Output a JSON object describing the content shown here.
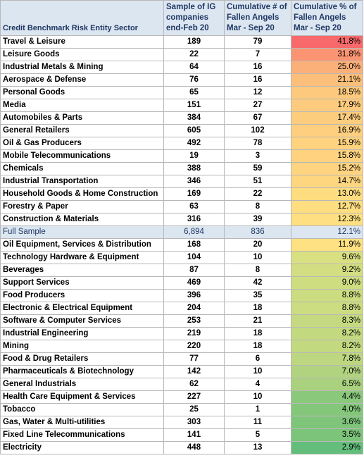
{
  "headers": {
    "sector": "Credit Benchmark Risk Entity Sector",
    "sample_line1": "Sample of IG",
    "sample_line2": "companies",
    "sample_line3": "end-Feb 20",
    "cum_line1": "Cumulative # of",
    "cum_line2": "Fallen Angels",
    "cum_line3": "Mar - Sep 20",
    "pct_line1": "Cumulative % of",
    "pct_line2": "Fallen Angels",
    "pct_line3": "Mar - Sep 20"
  },
  "rows": [
    {
      "sector": "Travel & Leisure",
      "sample": "189",
      "fallen": "79",
      "pct": "41.8%",
      "color": "#f8696b"
    },
    {
      "sector": "Leisure Goods",
      "sample": "22",
      "fallen": "7",
      "pct": "31.8%",
      "color": "#fa9473"
    },
    {
      "sector": "Industrial Metals & Mining",
      "sample": "64",
      "fallen": "16",
      "pct": "25.0%",
      "color": "#fbb079"
    },
    {
      "sector": "Aerospace & Defense",
      "sample": "76",
      "fallen": "16",
      "pct": "21.1%",
      "color": "#fcbf7b"
    },
    {
      "sector": "Personal Goods",
      "sample": "65",
      "fallen": "12",
      "pct": "18.5%",
      "color": "#fdc97d"
    },
    {
      "sector": "Media",
      "sample": "151",
      "fallen": "27",
      "pct": "17.9%",
      "color": "#fdcb7d"
    },
    {
      "sector": "Automobiles & Parts",
      "sample": "384",
      "fallen": "67",
      "pct": "17.4%",
      "color": "#fdcd7e"
    },
    {
      "sector": "General Retailers",
      "sample": "605",
      "fallen": "102",
      "pct": "16.9%",
      "color": "#fdcf7e"
    },
    {
      "sector": "Oil & Gas Producers",
      "sample": "492",
      "fallen": "78",
      "pct": "15.9%",
      "color": "#fed27f"
    },
    {
      "sector": "Mobile Telecommunications",
      "sample": "19",
      "fallen": "3",
      "pct": "15.8%",
      "color": "#fed27f"
    },
    {
      "sector": "Chemicals",
      "sample": "388",
      "fallen": "59",
      "pct": "15.2%",
      "color": "#fed480"
    },
    {
      "sector": "Industrial Transportation",
      "sample": "346",
      "fallen": "51",
      "pct": "14.7%",
      "color": "#fed680"
    },
    {
      "sector": "Household Goods & Home Construction",
      "sample": "169",
      "fallen": "22",
      "pct": "13.0%",
      "color": "#fedd81"
    },
    {
      "sector": "Forestry & Paper",
      "sample": "63",
      "fallen": "8",
      "pct": "12.7%",
      "color": "#fede81"
    },
    {
      "sector": "Construction & Materials",
      "sample": "316",
      "fallen": "39",
      "pct": "12.3%",
      "color": "#fee082"
    },
    {
      "sector": "Full Sample",
      "sample": "6,894",
      "fallen": "836",
      "pct": "12.1%",
      "full": true
    },
    {
      "sector": "Oil Equipment, Services & Distribution",
      "sample": "168",
      "fallen": "20",
      "pct": "11.9%",
      "color": "#fee182"
    },
    {
      "sector": "Technology Hardware & Equipment",
      "sample": "104",
      "fallen": "10",
      "pct": "9.6%",
      "color": "#d8e082"
    },
    {
      "sector": "Beverages",
      "sample": "87",
      "fallen": "8",
      "pct": "9.2%",
      "color": "#d2de81"
    },
    {
      "sector": "Support Services",
      "sample": "469",
      "fallen": "42",
      "pct": "9.0%",
      "color": "#cfdd81"
    },
    {
      "sector": "Food Producers",
      "sample": "396",
      "fallen": "35",
      "pct": "8.8%",
      "color": "#ccdc81"
    },
    {
      "sector": "Electronic & Electrical Equipment",
      "sample": "204",
      "fallen": "18",
      "pct": "8.8%",
      "color": "#ccdc81"
    },
    {
      "sector": "Software & Computer Services",
      "sample": "253",
      "fallen": "21",
      "pct": "8.3%",
      "color": "#c5da80"
    },
    {
      "sector": "Industrial Engineering",
      "sample": "219",
      "fallen": "18",
      "pct": "8.2%",
      "color": "#c3d980"
    },
    {
      "sector": "Mining",
      "sample": "220",
      "fallen": "18",
      "pct": "8.2%",
      "color": "#c3d980"
    },
    {
      "sector": "Food & Drug Retailers",
      "sample": "77",
      "fallen": "6",
      "pct": "7.8%",
      "color": "#bdd780"
    },
    {
      "sector": "Pharmaceuticals & Biotechnology",
      "sample": "142",
      "fallen": "10",
      "pct": "7.0%",
      "color": "#b1d37f"
    },
    {
      "sector": "General Industrials",
      "sample": "62",
      "fallen": "4",
      "pct": "6.5%",
      "color": "#aad17e"
    },
    {
      "sector": "Health Care Equipment & Services",
      "sample": "227",
      "fallen": "10",
      "pct": "4.4%",
      "color": "#8ac97b"
    },
    {
      "sector": "Tobacco",
      "sample": "25",
      "fallen": "1",
      "pct": "4.0%",
      "color": "#84c77b"
    },
    {
      "sector": "Gas, Water & Multi-utilities",
      "sample": "303",
      "fallen": "11",
      "pct": "3.6%",
      "color": "#7ec57a"
    },
    {
      "sector": "Fixed Line Telecommunications",
      "sample": "141",
      "fallen": "5",
      "pct": "3.5%",
      "color": "#7cc47a"
    },
    {
      "sector": "Electricity",
      "sample": "448",
      "fallen": "13",
      "pct": "2.9%",
      "color": "#63be7b"
    }
  ]
}
